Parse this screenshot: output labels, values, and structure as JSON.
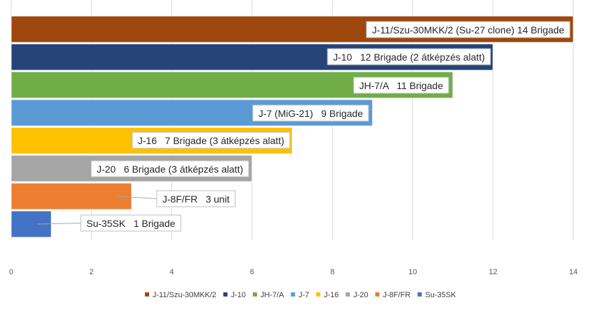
{
  "chart_data": {
    "type": "bar",
    "orientation": "horizontal",
    "xlim": [
      0,
      14
    ],
    "xticks": [
      "0",
      "2",
      "4",
      "6",
      "8",
      "10",
      "12",
      "14"
    ],
    "grid": true,
    "legend_position": "bottom",
    "series": [
      {
        "name": "J-11/Szu-30MKK/2",
        "value": 14,
        "color": "#9e480e",
        "label": "J-11/Szu-30MKK/2 (Su-27 clone) 14 Brigade"
      },
      {
        "name": "J-10",
        "value": 12,
        "color": "#264478",
        "label": "J-10   12 Brigade (2 átképzés alatt)"
      },
      {
        "name": "JH-7/A",
        "value": 11,
        "color": "#70ad47",
        "label": "JH-7/A   11 Brigade"
      },
      {
        "name": "J-7",
        "value": 9,
        "color": "#5b9bd5",
        "label": "J-7 (MiG-21)   9 Brigade"
      },
      {
        "name": "J-16",
        "value": 7,
        "color": "#ffc000",
        "label": "J-16   7 Brigade (3 átképzés alatt)"
      },
      {
        "name": "J-20",
        "value": 6,
        "color": "#a5a5a5",
        "label": "J-20   6 Brigade (3 átképzés alatt)"
      },
      {
        "name": "J-8F/FR",
        "value": 3,
        "color": "#ed7d31",
        "label": "J-8F/FR   3 unit"
      },
      {
        "name": "Su-35SK",
        "value": 1,
        "color": "#4472c4",
        "label": "Su-35SK   1 Brigade"
      }
    ]
  }
}
